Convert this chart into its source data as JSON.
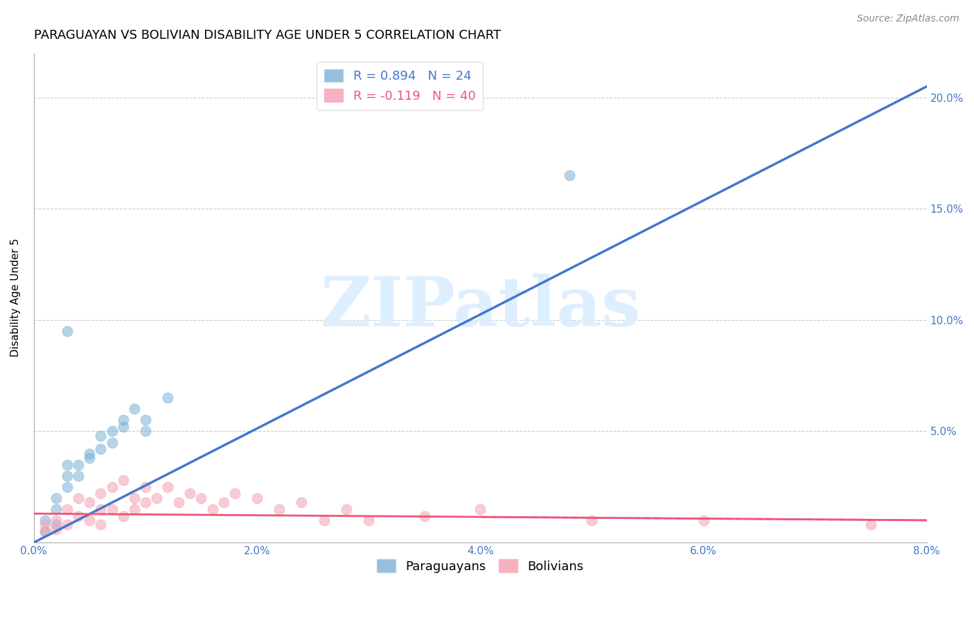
{
  "title": "PARAGUAYAN VS BOLIVIAN DISABILITY AGE UNDER 5 CORRELATION CHART",
  "source": "Source: ZipAtlas.com",
  "ylabel": "Disability Age Under 5",
  "xlim": [
    0.0,
    0.08
  ],
  "ylim": [
    0.0,
    0.22
  ],
  "xticks": [
    0.0,
    0.02,
    0.04,
    0.06,
    0.08
  ],
  "xtick_labels": [
    "0.0%",
    "2.0%",
    "4.0%",
    "6.0%",
    "8.0%"
  ],
  "yticks_right": [
    0.05,
    0.1,
    0.15,
    0.2
  ],
  "ytick_labels_right": [
    "5.0%",
    "10.0%",
    "15.0%",
    "20.0%"
  ],
  "paraguayan_color": "#7BAFD4",
  "bolivian_color": "#F4A0B0",
  "blue_line_color": "#4477CC",
  "pink_line_color": "#EE5577",
  "legend_blue_color": "#4477CC",
  "legend_pink_color": "#EE5577",
  "legend_blue_text": "R = 0.894   N = 24",
  "legend_pink_text": "R = -0.119   N = 40",
  "watermark_text": "ZIPatlas",
  "watermark_color": "#DDEEFF",
  "paraguayan_x": [
    0.001,
    0.001,
    0.002,
    0.002,
    0.002,
    0.003,
    0.003,
    0.003,
    0.004,
    0.004,
    0.005,
    0.005,
    0.006,
    0.006,
    0.007,
    0.007,
    0.008,
    0.008,
    0.009,
    0.01,
    0.01,
    0.012,
    0.003,
    0.048
  ],
  "paraguayan_y": [
    0.005,
    0.01,
    0.008,
    0.015,
    0.02,
    0.025,
    0.03,
    0.035,
    0.03,
    0.035,
    0.038,
    0.04,
    0.042,
    0.048,
    0.05,
    0.045,
    0.052,
    0.055,
    0.06,
    0.05,
    0.055,
    0.065,
    0.095,
    0.165
  ],
  "bolivian_x": [
    0.001,
    0.001,
    0.002,
    0.002,
    0.003,
    0.003,
    0.004,
    0.004,
    0.005,
    0.005,
    0.006,
    0.006,
    0.006,
    0.007,
    0.007,
    0.008,
    0.008,
    0.009,
    0.009,
    0.01,
    0.01,
    0.011,
    0.012,
    0.013,
    0.014,
    0.015,
    0.016,
    0.017,
    0.018,
    0.02,
    0.022,
    0.024,
    0.026,
    0.028,
    0.03,
    0.035,
    0.04,
    0.05,
    0.06,
    0.075
  ],
  "bolivian_y": [
    0.008,
    0.005,
    0.01,
    0.006,
    0.015,
    0.008,
    0.02,
    0.012,
    0.018,
    0.01,
    0.022,
    0.015,
    0.008,
    0.025,
    0.015,
    0.028,
    0.012,
    0.02,
    0.015,
    0.018,
    0.025,
    0.02,
    0.025,
    0.018,
    0.022,
    0.02,
    0.015,
    0.018,
    0.022,
    0.02,
    0.015,
    0.018,
    0.01,
    0.015,
    0.01,
    0.012,
    0.015,
    0.01,
    0.01,
    0.008
  ],
  "blue_line_x": [
    0.0,
    0.08
  ],
  "blue_line_y": [
    0.0,
    0.205
  ],
  "pink_line_x": [
    0.0,
    0.08
  ],
  "pink_line_y": [
    0.013,
    0.01
  ],
  "grid_color": "#CCCCCC",
  "background_color": "#FFFFFF",
  "title_fontsize": 13,
  "axis_label_fontsize": 11,
  "tick_fontsize": 11,
  "legend_fontsize": 13,
  "marker_size": 120,
  "marker_alpha": 0.55
}
